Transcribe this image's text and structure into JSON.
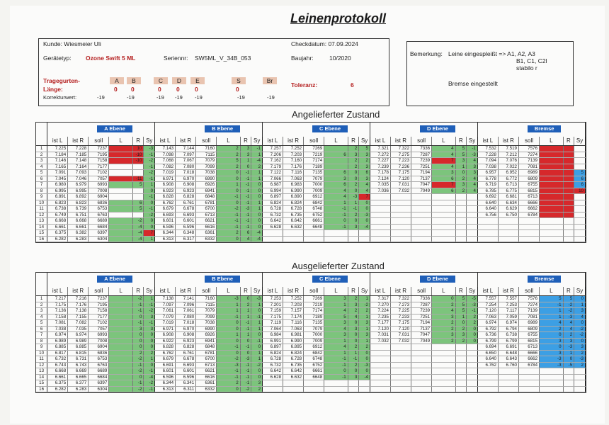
{
  "title": "Leinenprotokoll",
  "customer": "Kunde: Wiesmeier Uli",
  "check_date": "Checkdatum: 07.09.2024",
  "device_type_label": "Gerätetyp:",
  "device_type": "Ozone Swift 5 ML",
  "serial_label": "Seriennr:",
  "serial": "SW5ML_V_34B_053",
  "year_label": "Baujahr:",
  "year": "10/2020",
  "risers_label": "Tragegurten-",
  "length_label": "Länge:",
  "correction_label": "Korrekturwert:",
  "tolerance_label": "Toleranz:",
  "tolerance": "6",
  "risers": [
    {
      "name": "A",
      "length": "0",
      "correction": "-19"
    },
    {
      "name": "B",
      "length": "0",
      "correction": "-19"
    },
    {
      "name": "C",
      "length": "0",
      "correction": "-19"
    },
    {
      "name": "D",
      "length": "0",
      "correction": "-19"
    },
    {
      "name": "E",
      "length": "0",
      "correction": "-19"
    },
    {
      "name": "S",
      "length": "0",
      "correction": "-19"
    },
    {
      "name": "Br",
      "length": "",
      "correction": "-19"
    }
  ],
  "remark_label": "Bemerkung:",
  "remark_line1": "Leine eingespleißt => A1, A2, A3",
  "remark_line2": "B1, C1, C2l",
  "remark_line3": "stabilo r",
  "remark_line4": "Bremse eingestellt",
  "section_delivered": "Angelieferter Zustand",
  "section_returned": "Ausgelieferter Zustand",
  "groups": [
    "A Ebene",
    "B Ebene",
    "C Ebene",
    "D Ebene",
    "Bremse"
  ],
  "col_headers": [
    "ist L",
    "ist R",
    "soll",
    "L",
    "R",
    "Sy"
  ],
  "delivered": {
    "A": [
      [
        "7.225",
        "7.228",
        "7237",
        "",
        "10",
        "-3"
      ],
      [
        "7.184",
        "7.185",
        "7195",
        "",
        "-10",
        "-1"
      ],
      [
        "7.146",
        "7.148",
        "7158",
        "",
        "-10",
        "-2"
      ],
      [
        "7.165",
        "7.164",
        "7177",
        "",
        "",
        "-1"
      ],
      [
        "7.091",
        "7.093",
        "7102",
        "",
        "",
        "-2"
      ],
      [
        "7.045",
        "7.046",
        "7057",
        "",
        "-11",
        "-1"
      ],
      [
        "6.980",
        "6.979",
        "6993",
        "",
        "5",
        "1"
      ],
      [
        "6.995",
        "6.995",
        "7008",
        "",
        "",
        "0"
      ],
      [
        "6.891",
        "6.892",
        "6904",
        "",
        "",
        "-1"
      ],
      [
        "6.823",
        "6.823",
        "6836",
        "",
        "6",
        "0"
      ],
      [
        "6.738",
        "6.739",
        "6753",
        "",
        "5",
        "-1"
      ],
      [
        "6.749",
        "6.751",
        "6763",
        "",
        "",
        "-2"
      ],
      [
        "6.668",
        "6.668",
        "6689",
        "",
        "-2",
        "0"
      ],
      [
        "6.661",
        "6.661",
        "6684",
        "",
        "-4",
        "0"
      ],
      [
        "6.375",
        "6.382",
        "6397",
        "",
        "-4",
        "7"
      ],
      [
        "6.282",
        "6.283",
        "6304",
        "",
        "-4",
        "1"
      ]
    ],
    "B": [
      [
        "7.143",
        "7.144",
        "7160",
        "2",
        "3",
        "-1"
      ],
      [
        "7.098",
        "7.097",
        "7115",
        "2",
        "3",
        "1"
      ],
      [
        "7.068",
        "7.067",
        "7079",
        "5",
        "1",
        "-4"
      ],
      [
        "7.082",
        "7.080",
        "7099",
        "2",
        "0",
        "2"
      ],
      [
        "7.019",
        "7.018",
        "7038",
        "0",
        "-1",
        "1"
      ],
      [
        "6.971",
        "6.970",
        "6990",
        "0",
        "-1",
        "1"
      ],
      [
        "6.908",
        "6.908",
        "6926",
        "1",
        "-1",
        "0"
      ],
      [
        "6.923",
        "6.923",
        "6941",
        "0",
        "-1",
        "0"
      ],
      [
        "6.828",
        "6.828",
        "6848",
        "-1",
        "-1",
        "0"
      ],
      [
        "6.762",
        "6.761",
        "6781",
        "0",
        "-1",
        "1"
      ],
      [
        "6.679",
        "6.678",
        "6700",
        "-2",
        "-3",
        "1"
      ],
      [
        "6.693",
        "6.693",
        "6713",
        "-1",
        "-1",
        "0"
      ],
      [
        "6.601",
        "6.601",
        "6621",
        "-1",
        "-1",
        "0"
      ],
      [
        "6.596",
        "6.596",
        "6616",
        "-1",
        "-1",
        "0"
      ],
      [
        "6.344",
        "6.348",
        "6361",
        "2",
        "6",
        "-4"
      ],
      [
        "6.313",
        "6.317",
        "6332",
        "0",
        "4",
        "-4"
      ]
    ],
    "C": [
      [
        "7.257",
        "7.252",
        "7269",
        "",
        "2",
        "5"
      ],
      [
        "7.206",
        "7.203",
        "7219",
        "6",
        "3",
        "3"
      ],
      [
        "7.162",
        "7.160",
        "7174",
        "",
        "2",
        "2"
      ],
      [
        "7.179",
        "7.176",
        "7189",
        "",
        "2",
        "3"
      ],
      [
        "7.122",
        "7.116",
        "7135",
        "6",
        "0",
        "6"
      ],
      [
        "7.066",
        "7.063",
        "7079",
        "3",
        "0",
        "3"
      ],
      [
        "6.987",
        "6.983",
        "7000",
        "6",
        "2",
        "4"
      ],
      [
        "6.994",
        "6.990",
        "7009",
        "4",
        "0",
        "4"
      ],
      [
        "6.897",
        "6.890",
        "6912",
        "4",
        "-3",
        "7"
      ],
      [
        "6.824",
        "6.824",
        "6842",
        "1",
        "1",
        "0"
      ],
      [
        "6.728",
        "6.728",
        "6748",
        "-1",
        "-1",
        "0"
      ],
      [
        "6.732",
        "6.735",
        "6752",
        "-1",
        "2",
        "-3"
      ],
      [
        "6.642",
        "6.642",
        "6661",
        "0",
        "0",
        "0"
      ],
      [
        "6.628",
        "6.632",
        "6648",
        "-1",
        "3",
        "-4"
      ],
      [
        "",
        "",
        "",
        "",
        "",
        ""
      ],
      [
        "",
        "",
        "",
        "",
        "",
        ""
      ]
    ],
    "D": [
      [
        "7.321",
        "7.322",
        "7336",
        "4",
        "5",
        "-1"
      ],
      [
        "7.272",
        "7.275",
        "7287",
        "4",
        "5",
        "-3"
      ],
      [
        "7.227",
        "7.223",
        "7239",
        "7",
        "3",
        "4"
      ],
      [
        "7.239",
        "7.236",
        "7251",
        "4",
        "1",
        "3"
      ],
      [
        "7.178",
        "7.175",
        "7194",
        "3",
        "0",
        "3"
      ],
      [
        "7.124",
        "7.120",
        "7137",
        "6",
        "2",
        "4"
      ],
      [
        "7.035",
        "7.031",
        "7047",
        "7",
        "3",
        "4"
      ],
      [
        "7.036",
        "7.032",
        "7049",
        "6",
        "2",
        "4"
      ],
      [
        "",
        "",
        "",
        "",
        "",
        ""
      ],
      [
        "",
        "",
        "",
        "",
        "",
        ""
      ],
      [
        "",
        "",
        "",
        "",
        "",
        ""
      ],
      [
        "",
        "",
        "",
        "",
        "",
        ""
      ],
      [
        "",
        "",
        "",
        "",
        "",
        ""
      ],
      [
        "",
        "",
        "",
        "",
        "",
        ""
      ],
      [
        "",
        "",
        "",
        "",
        "",
        ""
      ],
      [
        "",
        "",
        "",
        "",
        "",
        ""
      ]
    ],
    "Br": [
      [
        "7.532",
        "7.519",
        "7576",
        "",
        "",
        ""
      ],
      [
        "7.228",
        "7.212",
        "7274",
        "",
        "",
        ""
      ],
      [
        "7.094",
        "7.076",
        "7139",
        "",
        "",
        ""
      ],
      [
        "7.038",
        "7.022",
        "7081",
        "",
        "",
        ""
      ],
      [
        "6.957",
        "6.952",
        "6989",
        "",
        "",
        "5"
      ],
      [
        "6.778",
        "6.772",
        "6809",
        "",
        "",
        "6"
      ],
      [
        "6.719",
        "6.713",
        "6755",
        "",
        "",
        "6"
      ],
      [
        "6.785",
        "6.775",
        "6815",
        "",
        "",
        "10"
      ],
      [
        "6.692",
        "6.681",
        "6713",
        "",
        "",
        ""
      ],
      [
        "6.640",
        "6.634",
        "6666",
        "",
        "",
        ""
      ],
      [
        "6.640",
        "6.629",
        "6662",
        "",
        "",
        ""
      ],
      [
        "6.756",
        "6.750",
        "6784",
        "",
        "",
        ""
      ],
      [
        "",
        "",
        "",
        "",
        "",
        ""
      ],
      [
        "",
        "",
        "",
        "",
        "",
        ""
      ],
      [
        "",
        "",
        "",
        "",
        "",
        ""
      ],
      [
        "",
        "",
        "",
        "",
        "",
        ""
      ]
    ]
  },
  "returned": {
    "A": [
      [
        "7.217",
        "7.216",
        "7237",
        "",
        "-2",
        "1"
      ],
      [
        "7.175",
        "7.176",
        "7195",
        "",
        "-1",
        "-1"
      ],
      [
        "7.136",
        "7.138",
        "7158",
        "",
        "-1",
        "-2"
      ],
      [
        "7.158",
        "7.155",
        "7177",
        "",
        "0",
        "3"
      ],
      [
        "7.081",
        "7.082",
        "7102",
        "",
        "-1",
        "-1"
      ],
      [
        "7.038",
        "7.035",
        "7057",
        "",
        "3",
        "3"
      ],
      [
        "6.974",
        "6.974",
        "6993",
        "",
        "0",
        "0"
      ],
      [
        "6.989",
        "6.989",
        "7008",
        "",
        "0",
        "0"
      ],
      [
        "6.885",
        "6.885",
        "6904",
        "",
        "0",
        "0"
      ],
      [
        "6.817",
        "6.815",
        "6836",
        "",
        "2",
        "2"
      ],
      [
        "6.732",
        "6.731",
        "6753",
        "",
        "-2",
        "1"
      ],
      [
        "6.743",
        "6.743",
        "6763",
        "",
        "-1",
        "0"
      ],
      [
        "6.668",
        "6.669",
        "6689",
        "",
        "-2",
        "-1"
      ],
      [
        "6.661",
        "6.665",
        "6684",
        "",
        "0",
        "-4"
      ],
      [
        "6.375",
        "6.377",
        "6397",
        "",
        "-1",
        "-2"
      ],
      [
        "6.282",
        "6.283",
        "6304",
        "",
        "-2",
        "-1"
      ]
    ],
    "B": [
      [
        "7.138",
        "7.141",
        "7160",
        "-3",
        "0",
        "-3"
      ],
      [
        "7.097",
        "7.096",
        "7115",
        "1",
        "2",
        "1"
      ],
      [
        "7.061",
        "7.061",
        "7079",
        "1",
        "1",
        "0"
      ],
      [
        "7.079",
        "7.080",
        "7099",
        "-1",
        "1",
        "-1"
      ],
      [
        "7.019",
        "7.018",
        "7038",
        "0",
        "-1",
        "1"
      ],
      [
        "6.971",
        "6.970",
        "6990",
        "0",
        "-1",
        "1"
      ],
      [
        "6.908",
        "6.908",
        "6926",
        "1",
        "1",
        "0"
      ],
      [
        "6.922",
        "6.923",
        "6941",
        "0",
        "0",
        "-1"
      ],
      [
        "6.828",
        "6.828",
        "6848",
        "-1",
        "-1",
        "0"
      ],
      [
        "6.762",
        "6.761",
        "6781",
        "0",
        "0",
        "1"
      ],
      [
        "6.679",
        "6.678",
        "6700",
        "-2",
        "-3",
        "1"
      ],
      [
        "6.691",
        "6.693",
        "6713",
        "-3",
        "-1",
        "-2"
      ],
      [
        "6.601",
        "6.601",
        "6621",
        "-1",
        "-1",
        "0"
      ],
      [
        "6.596",
        "6.596",
        "6616",
        "-1",
        "-1",
        "0"
      ],
      [
        "6.344",
        "6.341",
        "6361",
        "2",
        "-1",
        "3"
      ],
      [
        "6.313",
        "6.311",
        "6332",
        "0",
        "-2",
        "2"
      ]
    ],
    "C": [
      [
        "7.253",
        "7.252",
        "7269",
        "3",
        "2",
        "1"
      ],
      [
        "7.201",
        "7.203",
        "7219",
        "1",
        "3",
        "-2"
      ],
      [
        "7.159",
        "7.157",
        "7174",
        "4",
        "2",
        "2"
      ],
      [
        "7.175",
        "7.174",
        "7189",
        "5",
        "4",
        "1"
      ],
      [
        "7.119",
        "7.116",
        "7135",
        "3",
        "0",
        "3"
      ],
      [
        "7.064",
        "7.063",
        "7079",
        "4",
        "3",
        "1"
      ],
      [
        "6.984",
        "6.981",
        "7000",
        "3",
        "0",
        "3"
      ],
      [
        "6.991",
        "6.990",
        "7009",
        "1",
        "0",
        "1"
      ],
      [
        "6.897",
        "6.895",
        "6912",
        "4",
        "2",
        "2"
      ],
      [
        "6.824",
        "6.824",
        "6842",
        "1",
        "1",
        "0"
      ],
      [
        "6.728",
        "6.728",
        "6748",
        "-1",
        "-1",
        "0"
      ],
      [
        "6.732",
        "6.735",
        "6752",
        "-1",
        "2",
        "-3"
      ],
      [
        "6.642",
        "6.642",
        "6661",
        "0",
        "0",
        "0"
      ],
      [
        "6.628",
        "6.632",
        "6648",
        "-1",
        "3",
        "-4"
      ],
      [
        "",
        "",
        "",
        "",
        "",
        ""
      ],
      [
        "",
        "",
        "",
        "",
        "",
        ""
      ]
    ],
    "D": [
      [
        "7.317",
        "7.322",
        "7336",
        "0",
        "5",
        "-5"
      ],
      [
        "7.270",
        "7.273",
        "7287",
        "2",
        "5",
        "-3"
      ],
      [
        "7.224",
        "7.225",
        "7239",
        "4",
        "5",
        "-1"
      ],
      [
        "7.235",
        "7.233",
        "7251",
        "3",
        "1",
        "2"
      ],
      [
        "7.177",
        "7.175",
        "7194",
        "2",
        "0",
        "2"
      ],
      [
        "7.120",
        "7.120",
        "7137",
        "2",
        "2",
        "0"
      ],
      [
        "7.031",
        "7.031",
        "7047",
        "3",
        "3",
        "0"
      ],
      [
        "7.032",
        "7.032",
        "7049",
        "2",
        "2",
        "0"
      ],
      [
        "",
        "",
        "",
        "",
        "",
        ""
      ],
      [
        "",
        "",
        "",
        "",
        "",
        ""
      ],
      [
        "",
        "",
        "",
        "",
        "",
        ""
      ],
      [
        "",
        "",
        "",
        "",
        "",
        ""
      ],
      [
        "",
        "",
        "",
        "",
        "",
        ""
      ],
      [
        "",
        "",
        "",
        "",
        "",
        ""
      ],
      [
        "",
        "",
        "",
        "",
        "",
        ""
      ],
      [
        "",
        "",
        "",
        "",
        "",
        ""
      ]
    ],
    "Br": [
      [
        "7.557",
        "7.557",
        "7576",
        "5",
        "5",
        "0"
      ],
      [
        "7.254",
        "7.253",
        "7274",
        "-1",
        "-2",
        "1"
      ],
      [
        "7.120",
        "7.117",
        "7139",
        "1",
        "-2",
        "3"
      ],
      [
        "7.063",
        "7.059",
        "7081",
        "1",
        "-3",
        "4"
      ],
      [
        "6.974",
        "6.974",
        "6989",
        "4",
        "4",
        "0"
      ],
      [
        "6.792",
        "6.794",
        "6809",
        "2",
        "4",
        "-2"
      ],
      [
        "6.736",
        "6.738",
        "6755",
        "0",
        "2",
        "-2"
      ],
      [
        "6.799",
        "6.799",
        "6815",
        "3",
        "3",
        "0"
      ],
      [
        "6.694",
        "6.691",
        "6713",
        "0",
        "-3",
        "3"
      ],
      [
        "6.650",
        "6.648",
        "6666",
        "3",
        "1",
        "2"
      ],
      [
        "6.640",
        "6.643",
        "6662",
        "-3",
        "0",
        "-3"
      ],
      [
        "6.762",
        "6.760",
        "6784",
        "-3",
        "-5",
        "2"
      ],
      [
        "",
        "",
        "",
        "",
        "",
        ""
      ],
      [
        "",
        "",
        "",
        "",
        "",
        ""
      ],
      [
        "",
        "",
        "",
        "",
        "",
        ""
      ],
      [
        "",
        "",
        "",
        "",
        "",
        ""
      ]
    ]
  },
  "colors": {
    "ok": "#7cc47c",
    "bad": "#d6282b",
    "warn": "#e07878",
    "brake_ok": "#3c9fe4",
    "header_label": "#1f5fb8"
  }
}
